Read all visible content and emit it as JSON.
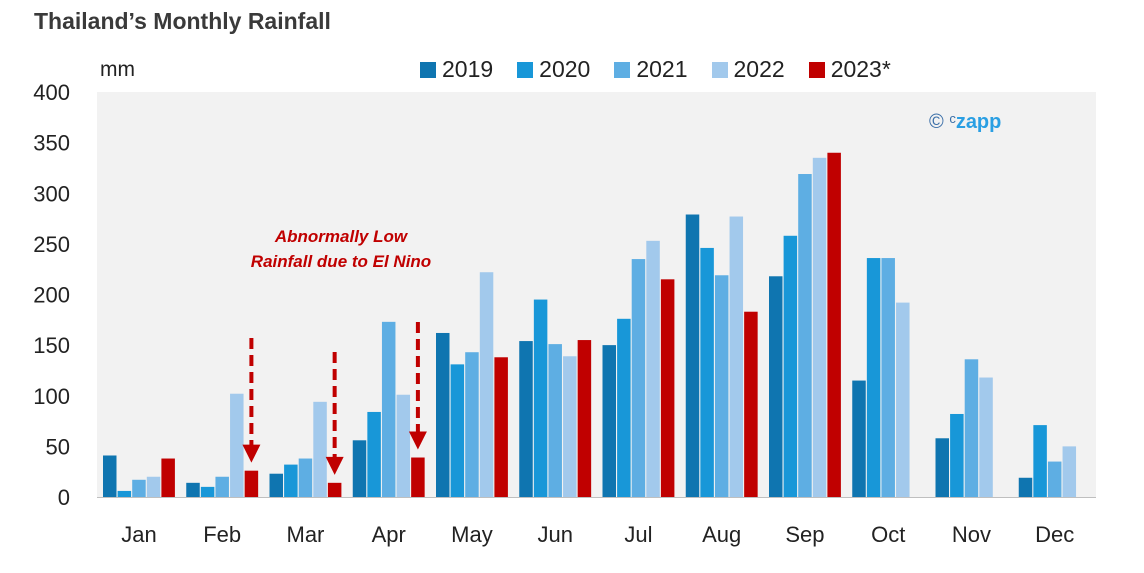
{
  "chart_data": {
    "type": "bar",
    "title": "Thailand’s Monthly Rainfall",
    "ylabel": "mm",
    "ylim": [
      0,
      400
    ],
    "yticks": [
      0,
      50,
      100,
      150,
      200,
      250,
      300,
      350,
      400
    ],
    "categories": [
      "Jan",
      "Feb",
      "Mar",
      "Apr",
      "May",
      "Jun",
      "Jul",
      "Aug",
      "Sep",
      "Oct",
      "Nov",
      "Dec"
    ],
    "series": [
      {
        "name": "2019",
        "color": "#0f75b0",
        "values": [
          41,
          14,
          23,
          56,
          162,
          154,
          150,
          279,
          218,
          115,
          58,
          19
        ]
      },
      {
        "name": "2020",
        "color": "#1897d8",
        "values": [
          6,
          10,
          32,
          84,
          131,
          195,
          176,
          246,
          258,
          236,
          82,
          71
        ]
      },
      {
        "name": "2021",
        "color": "#5eaee3",
        "values": [
          17,
          20,
          38,
          173,
          143,
          151,
          235,
          219,
          319,
          236,
          136,
          35
        ]
      },
      {
        "name": "2022",
        "color": "#a2c9ec",
        "values": [
          20,
          102,
          94,
          101,
          222,
          139,
          253,
          277,
          335,
          192,
          118,
          50
        ]
      },
      {
        "name": "2023*",
        "color": "#c00000",
        "values": [
          38,
          26,
          14,
          39,
          138,
          155,
          215,
          183,
          340,
          null,
          null,
          null
        ]
      }
    ],
    "annotation": "Abnormally Low Rainfall due to El Nino",
    "annotation_arrows_months": [
      "Feb",
      "Mar",
      "Apr"
    ],
    "grid": false,
    "legend": "top",
    "plot_background": "#f2f2f2"
  },
  "watermark": {
    "symbol": "©",
    "prefix": "c",
    "text": "zapp"
  }
}
